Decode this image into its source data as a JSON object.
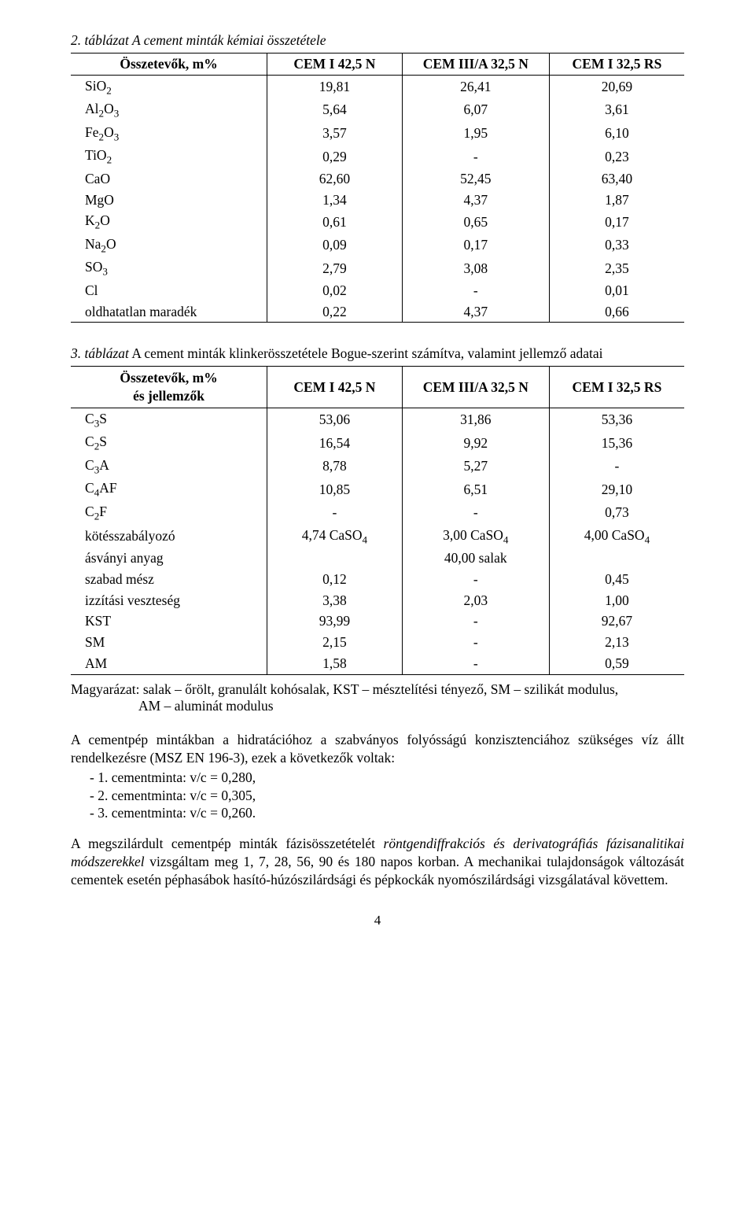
{
  "table1": {
    "title": "2. táblázat",
    "caption": " A cement minták kémiai összetétele",
    "columns": [
      "Összetevők, m%",
      "CEM I 42,5 N",
      "CEM III/A 32,5 N",
      "CEM I 32,5 RS"
    ],
    "rows": [
      {
        "label_html": "SiO<span class='sub'>2</span>",
        "v": [
          "19,81",
          "26,41",
          "20,69"
        ]
      },
      {
        "label_html": "Al<span class='sub'>2</span>O<span class='sub'>3</span>",
        "v": [
          "5,64",
          "6,07",
          "3,61"
        ]
      },
      {
        "label_html": "Fe<span class='sub'>2</span>O<span class='sub'>3</span>",
        "v": [
          "3,57",
          "1,95",
          "6,10"
        ]
      },
      {
        "label_html": "TiO<span class='sub'>2</span>",
        "v": [
          "0,29",
          "-",
          "0,23"
        ]
      },
      {
        "label_html": "CaO",
        "v": [
          "62,60",
          "52,45",
          "63,40"
        ]
      },
      {
        "label_html": "MgO",
        "v": [
          "1,34",
          "4,37",
          "1,87"
        ]
      },
      {
        "label_html": "K<span class='sub'>2</span>O",
        "v": [
          "0,61",
          "0,65",
          "0,17"
        ]
      },
      {
        "label_html": "Na<span class='sub'>2</span>O",
        "v": [
          "0,09",
          "0,17",
          "0,33"
        ]
      },
      {
        "label_html": "SO<span class='sub'>3</span>",
        "v": [
          "2,79",
          "3,08",
          "2,35"
        ]
      },
      {
        "label_html": "Cl",
        "v": [
          "0,02",
          "-",
          "0,01"
        ]
      },
      {
        "label_html": "oldhatatlan maradék",
        "v": [
          "0,22",
          "4,37",
          "0,66"
        ]
      }
    ],
    "col_widths": [
      "32%",
      "22%",
      "24%",
      "22%"
    ]
  },
  "table2": {
    "title_html": "<span class='ital'>3. táblázat</span> A cement minták klinkerösszetétele Bogue-szerint számítva, valamint jellemző adatai",
    "header_html": [
      "Összetevők, m%<br>és jellemzők",
      "CEM I 42,5 N",
      "CEM III/A 32,5 N",
      "CEM I 32,5 RS"
    ],
    "rows": [
      {
        "label_html": "C<span class='sub'>3</span>S",
        "v": [
          "53,06",
          "31,86",
          "53,36"
        ]
      },
      {
        "label_html": "C<span class='sub'>2</span>S",
        "v": [
          "16,54",
          "9,92",
          "15,36"
        ]
      },
      {
        "label_html": "C<span class='sub'>3</span>A",
        "v": [
          "8,78",
          "5,27",
          "-"
        ]
      },
      {
        "label_html": "C<span class='sub'>4</span>AF",
        "v": [
          "10,85",
          "6,51",
          "29,10"
        ]
      },
      {
        "label_html": "C<span class='sub'>2</span>F",
        "v": [
          "-",
          "-",
          "0,73"
        ]
      },
      {
        "label_html": "kötésszabályozó",
        "v": [
          "4,74 CaSO<span class='sub'>4</span>",
          "3,00 CaSO<span class='sub'>4</span>",
          "4,00 CaSO<span class='sub'>4</span>"
        ],
        "html": true
      },
      {
        "label_html": "ásványi anyag",
        "v": [
          "",
          "40,00 salak",
          ""
        ]
      },
      {
        "label_html": "szabad mész",
        "v": [
          "0,12",
          "-",
          "0,45"
        ]
      },
      {
        "label_html": "izzítási veszteség",
        "v": [
          "3,38",
          "2,03",
          "1,00"
        ]
      },
      {
        "label_html": "KST",
        "v": [
          "93,99",
          "-",
          "92,67"
        ]
      },
      {
        "label_html": "SM",
        "v": [
          "2,15",
          "-",
          "2,13"
        ]
      },
      {
        "label_html": "AM",
        "v": [
          "1,58",
          "-",
          "0,59"
        ]
      }
    ],
    "col_widths": [
      "32%",
      "22%",
      "24%",
      "22%"
    ]
  },
  "explain": {
    "line1": "Magyarázat: salak – őrölt, granulált kohósalak, KST – mésztelítési tényező, SM – szilikát modulus,",
    "line2": "AM – aluminát modulus"
  },
  "para1": "A cementpép mintákban a hidratációhoz a szabványos folyósságú konzisztenciához szükséges víz állt rendelkezésre (MSZ EN 196-3), ezek a következők voltak:",
  "list": [
    "- 1. cementminta:   v/c = 0,280,",
    "- 2. cementminta:   v/c = 0,305,",
    "- 3. cementminta:   v/c = 0,260."
  ],
  "para2_html": "A megszilárdult cementpép minták fázisösszetételét <span class='ital'>röntgendiffrakciós és derivatográfiás fázisanalitikai módszerekkel</span> vizsgáltam meg 1, 7, 28, 56, 90 és 180 napos korban. A mechanikai tulajdonságok változását cementek esetén péphasábok hasító-húzószilárdsági és pépkockák nyomószilárdsági vizsgálatával követtem.",
  "pageno": "4"
}
